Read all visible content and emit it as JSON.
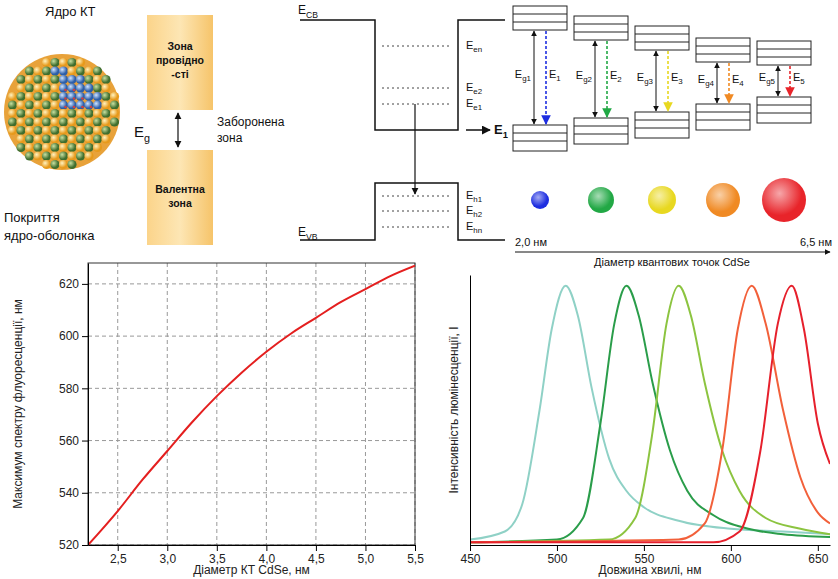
{
  "diagrams": {
    "quantum_dot": {
      "core_label": "Ядро КТ",
      "shell_label": {
        "lines": [
          "Покриття",
          "ядро-оболонка"
        ]
      }
    },
    "band_gap": {
      "conduction": {
        "lines": [
          "Зона",
          "провідно",
          "-сті"
        ]
      },
      "valence": {
        "lines": [
          "Валентна",
          "зона"
        ]
      },
      "gap_symbol": {
        "main": "E",
        "sub": "g"
      },
      "gap_label": {
        "lines": [
          "Заборонена",
          "зона"
        ]
      }
    },
    "quantum_well": {
      "cb": {
        "main": "E",
        "sub": "CB"
      },
      "vb": {
        "main": "E",
        "sub": "VB"
      },
      "electron_levels": [
        {
          "main": "E",
          "sub": "en"
        },
        {
          "main": "E",
          "sub": "e2"
        },
        {
          "main": "E",
          "sub": "e1"
        }
      ],
      "hole_levels": [
        {
          "main": "E",
          "sub": "h1"
        },
        {
          "main": "E",
          "sub": "h2"
        },
        {
          "main": "E",
          "sub": "hn"
        }
      ],
      "transition": {
        "main": "E",
        "sub": "1"
      }
    },
    "size_levels": {
      "columns": [
        {
          "gap": {
            "main": "E",
            "sub": "g1"
          },
          "emission": {
            "main": "E",
            "sub": "1"
          },
          "color": "#1e2ee0"
        },
        {
          "gap": {
            "main": "E",
            "sub": "g2"
          },
          "emission": {
            "main": "E",
            "sub": "2"
          },
          "color": "#22a845"
        },
        {
          "gap": {
            "main": "E",
            "sub": "g3"
          },
          "emission": {
            "main": "E",
            "sub": "3"
          },
          "color": "#e8d820"
        },
        {
          "gap": {
            "main": "E",
            "sub": "g4"
          },
          "emission": {
            "main": "E",
            "sub": "4"
          },
          "color": "#f08a24"
        },
        {
          "gap": {
            "main": "E",
            "sub": "g5"
          },
          "emission": {
            "main": "E",
            "sub": "5"
          },
          "color": "#e8242a"
        }
      ],
      "size_min": "2,0 нм",
      "size_max": "6,5 нм",
      "axis_label": "Діаметр квантових точок CdSe"
    }
  },
  "chart_data": [
    {
      "type": "line",
      "x_label": "Діаметр КТ CdSe, нм",
      "y_label": "Максимум спектру флуоресценції, нм",
      "x": [
        2.2,
        2.5,
        2.75,
        3.0,
        3.25,
        3.5,
        3.75,
        4.0,
        4.25,
        4.5,
        4.75,
        5.0,
        5.25,
        5.5
      ],
      "series": [
        {
          "color": "#e41f1f",
          "values": [
            520,
            533,
            545,
            556,
            567,
            577,
            586,
            594,
            601,
            607,
            613,
            618,
            623,
            627
          ]
        }
      ],
      "xlim": [
        2.2,
        5.5
      ],
      "ylim": [
        520,
        628
      ],
      "xticks": [
        {
          "value": 2.5,
          "label": "2,5"
        },
        {
          "value": 3.0,
          "label": "3,0"
        },
        {
          "value": 3.5,
          "label": "3,5"
        },
        {
          "value": 4.0,
          "label": "4,0"
        },
        {
          "value": 4.5,
          "label": "4,5"
        },
        {
          "value": 5.0,
          "label": "5,0"
        },
        {
          "value": 5.5,
          "label": "5,5"
        }
      ],
      "yticks": [
        520,
        540,
        560,
        580,
        600,
        620
      ],
      "grid": true
    },
    {
      "type": "line",
      "x_label": "Довжина хвилі, нм",
      "y_label": "Інтенсивність люмінесценції, I",
      "series": [
        {
          "color": "#8fd1c6",
          "x": [
            450,
            470,
            480,
            490,
            497,
            505,
            512,
            520,
            530,
            540,
            550,
            570,
            600,
            630,
            657
          ],
          "values": [
            0.02,
            0.05,
            0.15,
            0.5,
            0.8,
            0.96,
            0.85,
            0.58,
            0.32,
            0.2,
            0.14,
            0.09,
            0.06,
            0.05,
            0.04
          ]
        },
        {
          "color": "#2a9d4a",
          "x": [
            450,
            500,
            515,
            525,
            533,
            540,
            547,
            555,
            565,
            575,
            590,
            610,
            630,
            657
          ],
          "values": [
            0.01,
            0.02,
            0.1,
            0.45,
            0.82,
            0.96,
            0.85,
            0.6,
            0.35,
            0.2,
            0.11,
            0.06,
            0.04,
            0.03
          ]
        },
        {
          "color": "#8cc440",
          "x": [
            450,
            530,
            545,
            555,
            563,
            570,
            577,
            585,
            595,
            605,
            620,
            640,
            657
          ],
          "values": [
            0.01,
            0.02,
            0.1,
            0.42,
            0.82,
            0.96,
            0.85,
            0.6,
            0.35,
            0.2,
            0.1,
            0.06,
            0.04
          ]
        },
        {
          "color": "#f2603a",
          "x": [
            450,
            570,
            585,
            595,
            604,
            612,
            620,
            630,
            640,
            650,
            657
          ],
          "values": [
            0.01,
            0.02,
            0.08,
            0.35,
            0.8,
            0.96,
            0.82,
            0.5,
            0.25,
            0.12,
            0.08
          ]
        },
        {
          "color": "#e6202c",
          "x": [
            450,
            590,
            605,
            617,
            627,
            635,
            642,
            650,
            657
          ],
          "values": [
            0.01,
            0.01,
            0.05,
            0.35,
            0.82,
            0.96,
            0.8,
            0.45,
            0.3
          ]
        }
      ],
      "xlim": [
        450,
        657
      ],
      "ylim": [
        0,
        1
      ],
      "xticks": [
        450,
        500,
        550,
        600,
        650
      ],
      "yticks": [],
      "tick_labels": "x",
      "grid": false
    }
  ]
}
